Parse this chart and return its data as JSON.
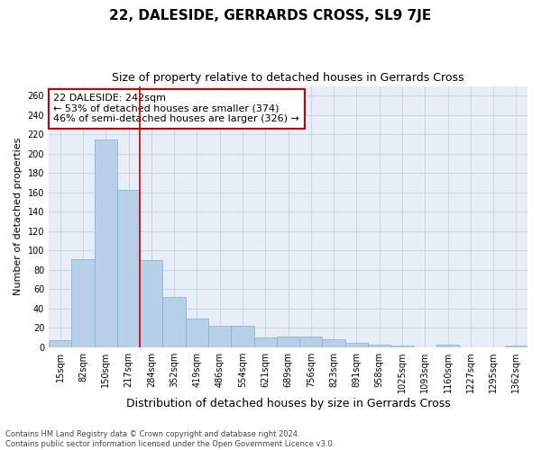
{
  "title": "22, DALESIDE, GERRARDS CROSS, SL9 7JE",
  "subtitle": "Size of property relative to detached houses in Gerrards Cross",
  "xlabel": "Distribution of detached houses by size in Gerrards Cross",
  "ylabel": "Number of detached properties",
  "categories": [
    "15sqm",
    "82sqm",
    "150sqm",
    "217sqm",
    "284sqm",
    "352sqm",
    "419sqm",
    "486sqm",
    "554sqm",
    "621sqm",
    "689sqm",
    "756sqm",
    "823sqm",
    "891sqm",
    "958sqm",
    "1025sqm",
    "1093sqm",
    "1160sqm",
    "1227sqm",
    "1295sqm",
    "1362sqm"
  ],
  "values": [
    7,
    91,
    215,
    163,
    90,
    52,
    30,
    22,
    22,
    10,
    11,
    11,
    8,
    5,
    3,
    2,
    0,
    3,
    0,
    0,
    2
  ],
  "bar_color": "#b8cfe8",
  "bar_edge_color": "#7aaed4",
  "vline_x": 3.5,
  "vline_color": "#cc0000",
  "annotation_text": "22 DALESIDE: 242sqm\n← 53% of detached houses are smaller (374)\n46% of semi-detached houses are larger (326) →",
  "annotation_box_color": "#ffffff",
  "annotation_box_edge": "#cc0000",
  "ylim": [
    0,
    270
  ],
  "yticks": [
    0,
    20,
    40,
    60,
    80,
    100,
    120,
    140,
    160,
    180,
    200,
    220,
    240,
    260
  ],
  "grid_color": "#c8d4e8",
  "background_color": "#e8eef8",
  "footer_text": "Contains HM Land Registry data © Crown copyright and database right 2024.\nContains public sector information licensed under the Open Government Licence v3.0.",
  "title_fontsize": 11,
  "subtitle_fontsize": 9,
  "xlabel_fontsize": 9,
  "ylabel_fontsize": 8,
  "tick_fontsize": 7,
  "annotation_fontsize": 8,
  "footer_fontsize": 6
}
